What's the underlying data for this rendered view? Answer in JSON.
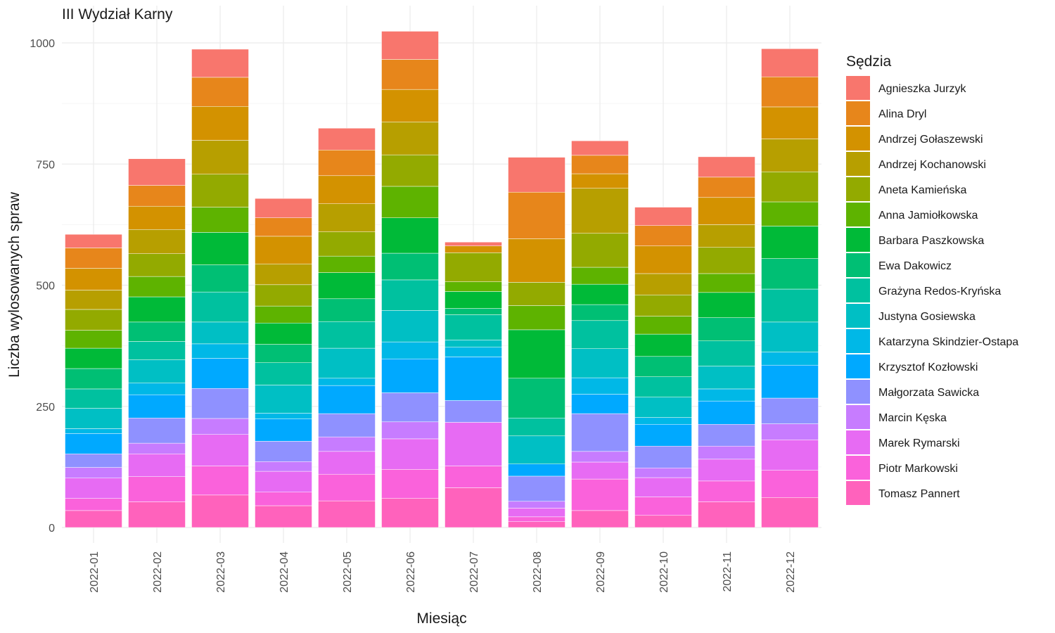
{
  "chart_data": {
    "type": "bar",
    "stacked": true,
    "title": "III Wydział Karny",
    "xlabel": "Miesiąc",
    "ylabel": "Liczba wylosowanych spraw",
    "ylim": [
      0,
      1050
    ],
    "yticks": [
      0,
      250,
      500,
      750,
      1000
    ],
    "grid": true,
    "legend_title": "Sędzia",
    "legend_position": "right",
    "categories": [
      "2022-01",
      "2022-02",
      "2022-03",
      "2022-04",
      "2022-05",
      "2022-06",
      "2022-07",
      "2022-08",
      "2022-09",
      "2022-10",
      "2022-11",
      "2022-12"
    ],
    "series": [
      {
        "name": "Agnieszka Jurzyk",
        "color": "#F8766D",
        "values": [
          28,
          55,
          58,
          40,
          45,
          58,
          8,
          72,
          30,
          38,
          42,
          58
        ]
      },
      {
        "name": "Alina Dryl",
        "color": "#E7861B",
        "values": [
          42,
          43,
          60,
          38,
          53,
          62,
          0,
          96,
          38,
          42,
          42,
          62
        ]
      },
      {
        "name": "Andrzej Gołaszewski",
        "color": "#D39200",
        "values": [
          45,
          48,
          70,
          57,
          58,
          67,
          14,
          90,
          30,
          57,
          56,
          66
        ]
      },
      {
        "name": "Andrzej Kochanowski",
        "color": "#B79F00",
        "values": [
          40,
          50,
          70,
          43,
          58,
          68,
          0,
          0,
          93,
          44,
          47,
          68
        ]
      },
      {
        "name": "Aneta Kamieńska",
        "color": "#93AA00",
        "values": [
          43,
          47,
          68,
          44,
          50,
          65,
          60,
          48,
          70,
          44,
          54,
          62
        ]
      },
      {
        "name": "Anna Jamiołkowska",
        "color": "#5EB300",
        "values": [
          37,
          42,
          52,
          35,
          34,
          65,
          20,
          50,
          35,
          37,
          39,
          50
        ]
      },
      {
        "name": "Barbara Paszkowska",
        "color": "#00BA38",
        "values": [
          42,
          52,
          67,
          44,
          54,
          73,
          35,
          100,
          42,
          46,
          52,
          67
        ]
      },
      {
        "name": "Ewa Dakowicz",
        "color": "#00BF74",
        "values": [
          42,
          40,
          56,
          38,
          47,
          55,
          13,
          82,
          33,
          42,
          48,
          63
        ]
      },
      {
        "name": "Grażyna Redos-Kryńska",
        "color": "#00C19F",
        "values": [
          40,
          38,
          62,
          46,
          55,
          63,
          52,
          37,
          58,
          42,
          52,
          68
        ]
      },
      {
        "name": "Justyna Gosiewska",
        "color": "#00BFC4",
        "values": [
          42,
          48,
          45,
          58,
          62,
          65,
          15,
          58,
          60,
          42,
          47,
          62
        ]
      },
      {
        "name": "Katarzyna Skindzier-Ostapa",
        "color": "#00B8E7",
        "values": [
          10,
          24,
          30,
          12,
          15,
          35,
          20,
          0,
          34,
          14,
          25,
          27
        ]
      },
      {
        "name": "Krzysztof Kozłowski",
        "color": "#00A9FF",
        "values": [
          42,
          48,
          62,
          46,
          58,
          70,
          90,
          25,
          40,
          45,
          48,
          68
        ]
      },
      {
        "name": "Małgorzata Sawicka",
        "color": "#8F91FF",
        "values": [
          28,
          52,
          62,
          42,
          48,
          60,
          45,
          52,
          78,
          45,
          45,
          53
        ]
      },
      {
        "name": "Marcin Kęska",
        "color": "#C77CFF",
        "values": [
          22,
          22,
          33,
          20,
          30,
          35,
          0,
          14,
          22,
          20,
          27,
          33
        ]
      },
      {
        "name": "Marek Rymarski",
        "color": "#E76BF3",
        "values": [
          42,
          47,
          65,
          43,
          47,
          63,
          90,
          18,
          35,
          40,
          45,
          63
        ]
      },
      {
        "name": "Piotr Markowski",
        "color": "#FA62DB",
        "values": [
          25,
          52,
          60,
          28,
          55,
          60,
          45,
          10,
          65,
          38,
          43,
          56
        ]
      },
      {
        "name": "Tomasz Pannert",
        "color": "#FF62BC",
        "values": [
          35,
          53,
          67,
          45,
          55,
          60,
          82,
          12,
          35,
          25,
          53,
          62
        ]
      }
    ]
  }
}
